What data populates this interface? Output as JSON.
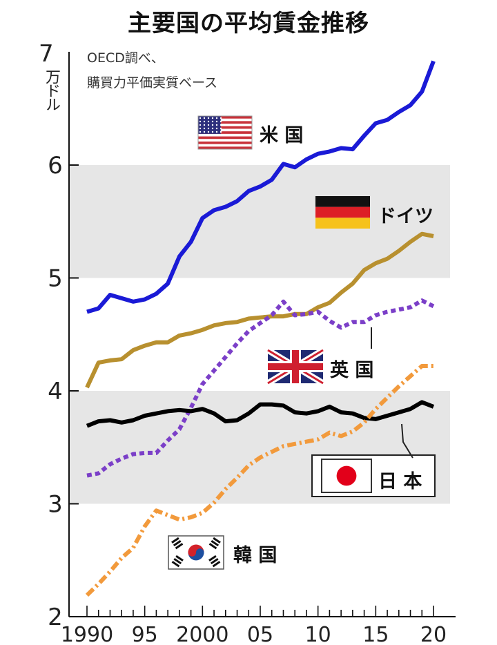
{
  "chart_data": {
    "type": "line",
    "title": "主要国の平均賃金推移",
    "source_note": [
      "OECD調べ、",
      "購買力平価実質ベース"
    ],
    "ylabel": "万ドル",
    "ymax_label": "7",
    "ylim": [
      2,
      7
    ],
    "yticks": [
      "2",
      "3",
      "4",
      "5",
      "6"
    ],
    "xlim": [
      1990,
      2020
    ],
    "xticks": [
      {
        "value": 1990,
        "label": "1990"
      },
      {
        "value": 1995,
        "label": "95"
      },
      {
        "value": 2000,
        "label": "2000"
      },
      {
        "value": 2005,
        "label": "05"
      },
      {
        "value": 2010,
        "label": "10"
      },
      {
        "value": 2015,
        "label": "15"
      },
      {
        "value": 2020,
        "label": "20"
      }
    ],
    "shaded_bands": [
      [
        3,
        4
      ],
      [
        5,
        6
      ]
    ],
    "years": [
      1990,
      1991,
      1992,
      1993,
      1994,
      1995,
      1996,
      1997,
      1998,
      1999,
      2000,
      2001,
      2002,
      2003,
      2004,
      2005,
      2006,
      2007,
      2008,
      2009,
      2010,
      2011,
      2012,
      2013,
      2014,
      2015,
      2016,
      2017,
      2018,
      2019,
      2020
    ],
    "series": [
      {
        "name": "米 国",
        "color": "#1a1ad6",
        "style": "solid",
        "values": [
          4.7,
          4.73,
          4.85,
          4.82,
          4.79,
          4.81,
          4.86,
          4.95,
          5.19,
          5.32,
          5.53,
          5.6,
          5.63,
          5.68,
          5.77,
          5.81,
          5.87,
          6.01,
          5.98,
          6.05,
          6.1,
          6.12,
          6.15,
          6.14,
          6.26,
          6.37,
          6.4,
          6.47,
          6.53,
          6.65,
          6.92
        ]
      },
      {
        "name": "ドイツ",
        "color": "#b8902f",
        "style": "solid",
        "values": [
          4.03,
          4.25,
          4.27,
          4.28,
          4.36,
          4.4,
          4.43,
          4.43,
          4.49,
          4.51,
          4.54,
          4.58,
          4.6,
          4.61,
          4.64,
          4.65,
          4.66,
          4.66,
          4.68,
          4.68,
          4.74,
          4.78,
          4.87,
          4.95,
          5.07,
          5.13,
          5.17,
          5.24,
          5.32,
          5.39,
          5.37
        ]
      },
      {
        "name": "英 国",
        "color": "#7b3fc8",
        "style": "dashed",
        "values": [
          3.25,
          3.27,
          3.35,
          3.4,
          3.44,
          3.45,
          3.45,
          3.56,
          3.66,
          3.85,
          4.06,
          4.18,
          4.3,
          4.42,
          4.53,
          4.6,
          4.67,
          4.79,
          4.67,
          4.68,
          4.7,
          4.62,
          4.56,
          4.61,
          4.61,
          4.67,
          4.7,
          4.72,
          4.74,
          4.8,
          4.75
        ]
      },
      {
        "name": "日 本",
        "color": "#000000",
        "style": "solid",
        "values": [
          3.69,
          3.73,
          3.74,
          3.72,
          3.74,
          3.78,
          3.8,
          3.82,
          3.83,
          3.82,
          3.84,
          3.8,
          3.73,
          3.74,
          3.8,
          3.88,
          3.88,
          3.87,
          3.81,
          3.8,
          3.82,
          3.86,
          3.81,
          3.8,
          3.76,
          3.75,
          3.78,
          3.81,
          3.84,
          3.9,
          3.86
        ]
      },
      {
        "name": "韓 国",
        "color": "#f29a3c",
        "style": "dashdot",
        "values": [
          2.19,
          2.29,
          2.4,
          2.52,
          2.61,
          2.8,
          2.94,
          2.9,
          2.86,
          2.88,
          2.92,
          3.01,
          3.13,
          3.23,
          3.34,
          3.41,
          3.46,
          3.51,
          3.53,
          3.55,
          3.57,
          3.63,
          3.6,
          3.64,
          3.72,
          3.84,
          3.94,
          4.04,
          4.13,
          4.22,
          4.22
        ]
      }
    ],
    "legend": [
      {
        "flag": "us-flag-icon",
        "label": "米 国"
      },
      {
        "flag": "de-flag-icon",
        "label": "ドイツ"
      },
      {
        "flag": "uk-flag-icon",
        "label": "英 国"
      },
      {
        "flag": "jp-flag-icon",
        "label": "日 本"
      },
      {
        "flag": "kr-flag-icon",
        "label": "韓 国"
      }
    ]
  }
}
